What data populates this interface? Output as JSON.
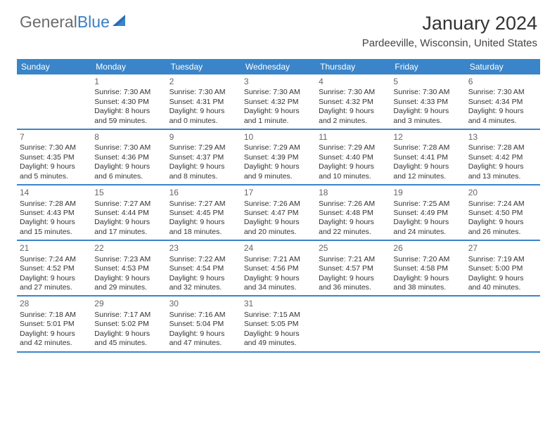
{
  "logo": {
    "gray": "General",
    "blue": "Blue"
  },
  "title": "January 2024",
  "location": "Pardeeville, Wisconsin, United States",
  "dayNames": [
    "Sunday",
    "Monday",
    "Tuesday",
    "Wednesday",
    "Thursday",
    "Friday",
    "Saturday"
  ],
  "colors": {
    "header_bg": "#3a85c9",
    "header_text": "#ffffff",
    "border": "#3a85c9",
    "logo_gray": "#6b6b6b",
    "logo_blue": "#3a7fc4",
    "text": "#333333",
    "daynum": "#666666",
    "background": "#ffffff"
  },
  "weeks": [
    [
      {},
      {
        "n": "1",
        "sr": "Sunrise: 7:30 AM",
        "ss": "Sunset: 4:30 PM",
        "d1": "Daylight: 8 hours",
        "d2": "and 59 minutes."
      },
      {
        "n": "2",
        "sr": "Sunrise: 7:30 AM",
        "ss": "Sunset: 4:31 PM",
        "d1": "Daylight: 9 hours",
        "d2": "and 0 minutes."
      },
      {
        "n": "3",
        "sr": "Sunrise: 7:30 AM",
        "ss": "Sunset: 4:32 PM",
        "d1": "Daylight: 9 hours",
        "d2": "and 1 minute."
      },
      {
        "n": "4",
        "sr": "Sunrise: 7:30 AM",
        "ss": "Sunset: 4:32 PM",
        "d1": "Daylight: 9 hours",
        "d2": "and 2 minutes."
      },
      {
        "n": "5",
        "sr": "Sunrise: 7:30 AM",
        "ss": "Sunset: 4:33 PM",
        "d1": "Daylight: 9 hours",
        "d2": "and 3 minutes."
      },
      {
        "n": "6",
        "sr": "Sunrise: 7:30 AM",
        "ss": "Sunset: 4:34 PM",
        "d1": "Daylight: 9 hours",
        "d2": "and 4 minutes."
      }
    ],
    [
      {
        "n": "7",
        "sr": "Sunrise: 7:30 AM",
        "ss": "Sunset: 4:35 PM",
        "d1": "Daylight: 9 hours",
        "d2": "and 5 minutes."
      },
      {
        "n": "8",
        "sr": "Sunrise: 7:30 AM",
        "ss": "Sunset: 4:36 PM",
        "d1": "Daylight: 9 hours",
        "d2": "and 6 minutes."
      },
      {
        "n": "9",
        "sr": "Sunrise: 7:29 AM",
        "ss": "Sunset: 4:37 PM",
        "d1": "Daylight: 9 hours",
        "d2": "and 8 minutes."
      },
      {
        "n": "10",
        "sr": "Sunrise: 7:29 AM",
        "ss": "Sunset: 4:39 PM",
        "d1": "Daylight: 9 hours",
        "d2": "and 9 minutes."
      },
      {
        "n": "11",
        "sr": "Sunrise: 7:29 AM",
        "ss": "Sunset: 4:40 PM",
        "d1": "Daylight: 9 hours",
        "d2": "and 10 minutes."
      },
      {
        "n": "12",
        "sr": "Sunrise: 7:28 AM",
        "ss": "Sunset: 4:41 PM",
        "d1": "Daylight: 9 hours",
        "d2": "and 12 minutes."
      },
      {
        "n": "13",
        "sr": "Sunrise: 7:28 AM",
        "ss": "Sunset: 4:42 PM",
        "d1": "Daylight: 9 hours",
        "d2": "and 13 minutes."
      }
    ],
    [
      {
        "n": "14",
        "sr": "Sunrise: 7:28 AM",
        "ss": "Sunset: 4:43 PM",
        "d1": "Daylight: 9 hours",
        "d2": "and 15 minutes."
      },
      {
        "n": "15",
        "sr": "Sunrise: 7:27 AM",
        "ss": "Sunset: 4:44 PM",
        "d1": "Daylight: 9 hours",
        "d2": "and 17 minutes."
      },
      {
        "n": "16",
        "sr": "Sunrise: 7:27 AM",
        "ss": "Sunset: 4:45 PM",
        "d1": "Daylight: 9 hours",
        "d2": "and 18 minutes."
      },
      {
        "n": "17",
        "sr": "Sunrise: 7:26 AM",
        "ss": "Sunset: 4:47 PM",
        "d1": "Daylight: 9 hours",
        "d2": "and 20 minutes."
      },
      {
        "n": "18",
        "sr": "Sunrise: 7:26 AM",
        "ss": "Sunset: 4:48 PM",
        "d1": "Daylight: 9 hours",
        "d2": "and 22 minutes."
      },
      {
        "n": "19",
        "sr": "Sunrise: 7:25 AM",
        "ss": "Sunset: 4:49 PM",
        "d1": "Daylight: 9 hours",
        "d2": "and 24 minutes."
      },
      {
        "n": "20",
        "sr": "Sunrise: 7:24 AM",
        "ss": "Sunset: 4:50 PM",
        "d1": "Daylight: 9 hours",
        "d2": "and 26 minutes."
      }
    ],
    [
      {
        "n": "21",
        "sr": "Sunrise: 7:24 AM",
        "ss": "Sunset: 4:52 PM",
        "d1": "Daylight: 9 hours",
        "d2": "and 27 minutes."
      },
      {
        "n": "22",
        "sr": "Sunrise: 7:23 AM",
        "ss": "Sunset: 4:53 PM",
        "d1": "Daylight: 9 hours",
        "d2": "and 29 minutes."
      },
      {
        "n": "23",
        "sr": "Sunrise: 7:22 AM",
        "ss": "Sunset: 4:54 PM",
        "d1": "Daylight: 9 hours",
        "d2": "and 32 minutes."
      },
      {
        "n": "24",
        "sr": "Sunrise: 7:21 AM",
        "ss": "Sunset: 4:56 PM",
        "d1": "Daylight: 9 hours",
        "d2": "and 34 minutes."
      },
      {
        "n": "25",
        "sr": "Sunrise: 7:21 AM",
        "ss": "Sunset: 4:57 PM",
        "d1": "Daylight: 9 hours",
        "d2": "and 36 minutes."
      },
      {
        "n": "26",
        "sr": "Sunrise: 7:20 AM",
        "ss": "Sunset: 4:58 PM",
        "d1": "Daylight: 9 hours",
        "d2": "and 38 minutes."
      },
      {
        "n": "27",
        "sr": "Sunrise: 7:19 AM",
        "ss": "Sunset: 5:00 PM",
        "d1": "Daylight: 9 hours",
        "d2": "and 40 minutes."
      }
    ],
    [
      {
        "n": "28",
        "sr": "Sunrise: 7:18 AM",
        "ss": "Sunset: 5:01 PM",
        "d1": "Daylight: 9 hours",
        "d2": "and 42 minutes."
      },
      {
        "n": "29",
        "sr": "Sunrise: 7:17 AM",
        "ss": "Sunset: 5:02 PM",
        "d1": "Daylight: 9 hours",
        "d2": "and 45 minutes."
      },
      {
        "n": "30",
        "sr": "Sunrise: 7:16 AM",
        "ss": "Sunset: 5:04 PM",
        "d1": "Daylight: 9 hours",
        "d2": "and 47 minutes."
      },
      {
        "n": "31",
        "sr": "Sunrise: 7:15 AM",
        "ss": "Sunset: 5:05 PM",
        "d1": "Daylight: 9 hours",
        "d2": "and 49 minutes."
      },
      {},
      {},
      {}
    ]
  ]
}
